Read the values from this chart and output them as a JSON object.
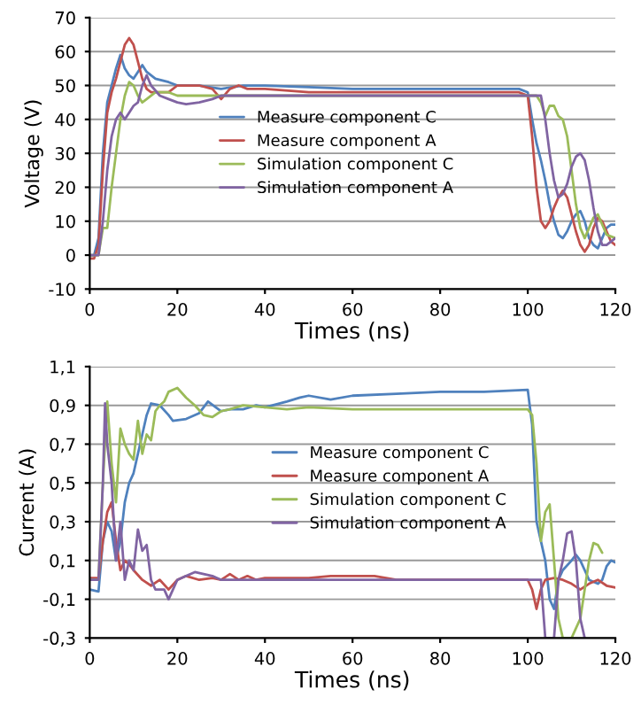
{
  "chart_data": [
    {
      "type": "line",
      "xlabel": "Times (ns)",
      "ylabel": "Voltage (V)",
      "xlim": [
        0,
        120
      ],
      "xticks": [
        0,
        20,
        40,
        60,
        80,
        100,
        120
      ],
      "ylim": [
        -10,
        70
      ],
      "yticks": [
        -10,
        0,
        10,
        20,
        30,
        40,
        50,
        60,
        70
      ],
      "grid": "y",
      "legend": "center",
      "marker": "none",
      "line_style": "solid",
      "series": [
        {
          "name": "Measure component C",
          "color": "#4f81bd",
          "x": [
            0,
            1,
            2,
            3,
            4,
            5,
            6,
            7,
            8,
            9,
            10,
            11,
            12,
            13,
            15,
            18,
            20,
            25,
            30,
            35,
            40,
            50,
            60,
            70,
            80,
            90,
            98,
            100,
            101,
            102,
            103,
            104,
            105,
            106,
            107,
            108,
            109,
            110,
            111,
            112,
            113,
            114,
            115,
            116,
            117,
            118,
            119,
            120
          ],
          "values": [
            0,
            0,
            5,
            30,
            45,
            50,
            55,
            59,
            55,
            53,
            52,
            54,
            56,
            54,
            52,
            51,
            50,
            50,
            49,
            50,
            50,
            49.5,
            49,
            49,
            49,
            49,
            49,
            48,
            40,
            33,
            28,
            22,
            15,
            10,
            6,
            5,
            7,
            10,
            12,
            13,
            10,
            5,
            3,
            2,
            5,
            8,
            9,
            9
          ]
        },
        {
          "name": "Measure component A",
          "color": "#c0504d",
          "x": [
            0,
            1,
            2,
            3,
            4,
            5,
            6,
            7,
            8,
            9,
            10,
            11,
            12,
            13,
            14,
            16,
            18,
            20,
            25,
            28,
            30,
            32,
            34,
            36,
            40,
            50,
            60,
            80,
            98,
            100,
            101,
            102,
            103,
            104,
            105,
            106,
            107,
            108,
            109,
            110,
            111,
            112,
            113,
            114,
            115,
            116,
            117,
            118,
            119,
            120
          ],
          "values": [
            -1,
            -1,
            3,
            25,
            42,
            48,
            52,
            57,
            62,
            64,
            62,
            57,
            52,
            49,
            48,
            48,
            48,
            50,
            50,
            49,
            46,
            49,
            50,
            49,
            49,
            48,
            48,
            48,
            48,
            47,
            35,
            20,
            10,
            8,
            10,
            14,
            17,
            19,
            17,
            12,
            7,
            3,
            1,
            3,
            8,
            11,
            10,
            7,
            4,
            3
          ]
        },
        {
          "name": "Simulation component C",
          "color": "#9bbb59",
          "x": [
            0,
            2,
            3,
            4,
            5,
            6,
            7,
            8,
            9,
            10,
            11,
            12,
            13,
            15,
            18,
            20,
            30,
            40,
            60,
            80,
            100,
            102,
            103,
            104,
            105,
            106,
            107,
            108,
            109,
            110,
            111,
            112,
            113,
            114,
            115,
            116,
            117,
            118,
            120
          ],
          "values": [
            0,
            0,
            8,
            8,
            20,
            30,
            40,
            47,
            51,
            50,
            47,
            45,
            46,
            48,
            48,
            47,
            47,
            47,
            47,
            47,
            47,
            47,
            45,
            41,
            44,
            44,
            41,
            40,
            35,
            25,
            15,
            8,
            5,
            8,
            11,
            12,
            9,
            6,
            5
          ]
        },
        {
          "name": "Simulation component A",
          "color": "#8064a2",
          "x": [
            0,
            2,
            3,
            4,
            5,
            6,
            7,
            8,
            9,
            10,
            11,
            12,
            13,
            14,
            16,
            18,
            20,
            22,
            25,
            28,
            30,
            35,
            40,
            60,
            80,
            100,
            103,
            104,
            105,
            106,
            107,
            108,
            109,
            110,
            111,
            112,
            113,
            114,
            115,
            116,
            117,
            118,
            120
          ],
          "values": [
            0,
            0,
            10,
            25,
            35,
            40,
            42,
            40,
            42,
            44,
            45,
            50,
            53,
            50,
            47,
            46,
            45,
            44.5,
            45,
            46,
            47,
            47,
            47,
            47,
            47,
            47,
            47,
            40,
            30,
            22,
            17,
            18,
            21,
            26,
            29,
            30,
            28,
            22,
            14,
            7,
            3,
            3,
            5
          ]
        }
      ]
    },
    {
      "type": "line",
      "xlabel": "Times (ns)",
      "ylabel": "Current (A)",
      "xlim": [
        0,
        120
      ],
      "xticks": [
        0,
        20,
        40,
        60,
        80,
        100,
        120
      ],
      "ylim": [
        -0.3,
        1.1
      ],
      "yticks": [
        {
          "value": -0.3,
          "label": "-0,3"
        },
        {
          "value": -0.1,
          "label": "-0,1"
        },
        {
          "value": 0.1,
          "label": "0,1"
        },
        {
          "value": 0.3,
          "label": "0,3"
        },
        {
          "value": 0.5,
          "label": "0,5"
        },
        {
          "value": 0.7,
          "label": "0,7"
        },
        {
          "value": 0.9,
          "label": "0,9"
        },
        {
          "value": 1.1,
          "label": "1,1"
        }
      ],
      "grid": "y",
      "legend": "center right",
      "marker": "none",
      "line_style": "solid",
      "series": [
        {
          "name": "Measure component C",
          "color": "#4f81bd",
          "x": [
            0,
            2,
            3,
            4,
            5,
            6,
            7,
            8,
            9,
            10,
            11,
            12,
            13,
            14,
            16,
            18,
            19,
            22,
            25,
            27,
            30,
            32,
            35,
            38,
            40,
            45,
            48,
            50,
            55,
            60,
            70,
            80,
            90,
            100,
            101,
            102,
            103,
            104,
            105,
            106,
            107,
            108,
            110,
            111,
            112,
            113,
            114,
            116,
            117,
            118,
            119,
            120
          ],
          "values": [
            -0.05,
            -0.06,
            0.2,
            0.3,
            0.25,
            0.1,
            0.2,
            0.4,
            0.5,
            0.55,
            0.65,
            0.75,
            0.85,
            0.91,
            0.9,
            0.85,
            0.82,
            0.83,
            0.86,
            0.92,
            0.87,
            0.88,
            0.88,
            0.9,
            0.89,
            0.92,
            0.94,
            0.95,
            0.93,
            0.95,
            0.96,
            0.97,
            0.97,
            0.98,
            0.8,
            0.3,
            0.2,
            0.1,
            -0.1,
            -0.15,
            0,
            0.05,
            0.1,
            0.13,
            0.1,
            0.05,
            0,
            -0.02,
            0,
            0.07,
            0.1,
            0.09
          ]
        },
        {
          "name": "Measure component A",
          "color": "#c0504d",
          "x": [
            0,
            2,
            3,
            4,
            5,
            6,
            7,
            8,
            9,
            10,
            12,
            14,
            16,
            18,
            20,
            22,
            25,
            28,
            30,
            32,
            34,
            36,
            38,
            40,
            50,
            55,
            60,
            65,
            70,
            80,
            90,
            100,
            101,
            102,
            103,
            104,
            106,
            108,
            110,
            112,
            114,
            116,
            118,
            120
          ],
          "values": [
            0.01,
            0.01,
            0.2,
            0.35,
            0.4,
            0.2,
            0.05,
            0.1,
            0.08,
            0.05,
            0,
            -0.03,
            0,
            -0.05,
            0,
            0.02,
            0,
            0.01,
            0,
            0.03,
            0,
            0.02,
            0,
            0.01,
            0.01,
            0.02,
            0.02,
            0.02,
            0,
            0,
            0,
            0,
            -0.05,
            -0.15,
            -0.05,
            0,
            0.01,
            0,
            -0.02,
            -0.05,
            -0.02,
            0,
            -0.03,
            -0.04
          ]
        },
        {
          "name": "Simulation component C",
          "color": "#9bbb59",
          "x": [
            0,
            2,
            3,
            4,
            5,
            6,
            7,
            8,
            9,
            10,
            11,
            12,
            13,
            14,
            15,
            16,
            17,
            18,
            20,
            22,
            24,
            26,
            28,
            30,
            32,
            35,
            40,
            45,
            50,
            60,
            80,
            100,
            101,
            102,
            103,
            104,
            105,
            106,
            107,
            108,
            110,
            112,
            114,
            115,
            116,
            117
          ],
          "values": [
            0,
            0,
            0.5,
            0.92,
            0.6,
            0.4,
            0.78,
            0.7,
            0.65,
            0.62,
            0.82,
            0.65,
            0.75,
            0.72,
            0.87,
            0.9,
            0.92,
            0.97,
            0.99,
            0.94,
            0.9,
            0.85,
            0.84,
            0.87,
            0.88,
            0.9,
            0.89,
            0.88,
            0.89,
            0.88,
            0.88,
            0.88,
            0.85,
            0.6,
            0.2,
            0.35,
            0.39,
            0.1,
            -0.2,
            -0.3,
            -0.3,
            -0.2,
            0.1,
            0.19,
            0.18,
            0.14
          ]
        },
        {
          "name": "Simulation component A",
          "color": "#8064a2",
          "x": [
            0,
            2,
            3,
            3.5,
            4,
            5,
            6,
            7,
            8,
            9,
            10,
            11,
            12,
            13,
            14,
            15,
            17,
            18,
            19,
            20,
            22,
            24,
            26,
            28,
            30,
            35,
            40,
            60,
            100,
            103,
            104,
            106,
            107,
            108,
            109,
            110,
            111,
            112,
            113
          ],
          "values": [
            0,
            0,
            0.5,
            0.91,
            0.7,
            0.5,
            0.1,
            0.3,
            0,
            0.1,
            0.05,
            0.26,
            0.15,
            0.18,
            0,
            -0.05,
            -0.05,
            -0.1,
            -0.05,
            0,
            0.02,
            0.04,
            0.03,
            0.02,
            0,
            0,
            0,
            0,
            0,
            0,
            -0.3,
            -0.3,
            0,
            0.1,
            0.24,
            0.25,
            0.1,
            -0.2,
            -0.3
          ]
        }
      ]
    }
  ]
}
